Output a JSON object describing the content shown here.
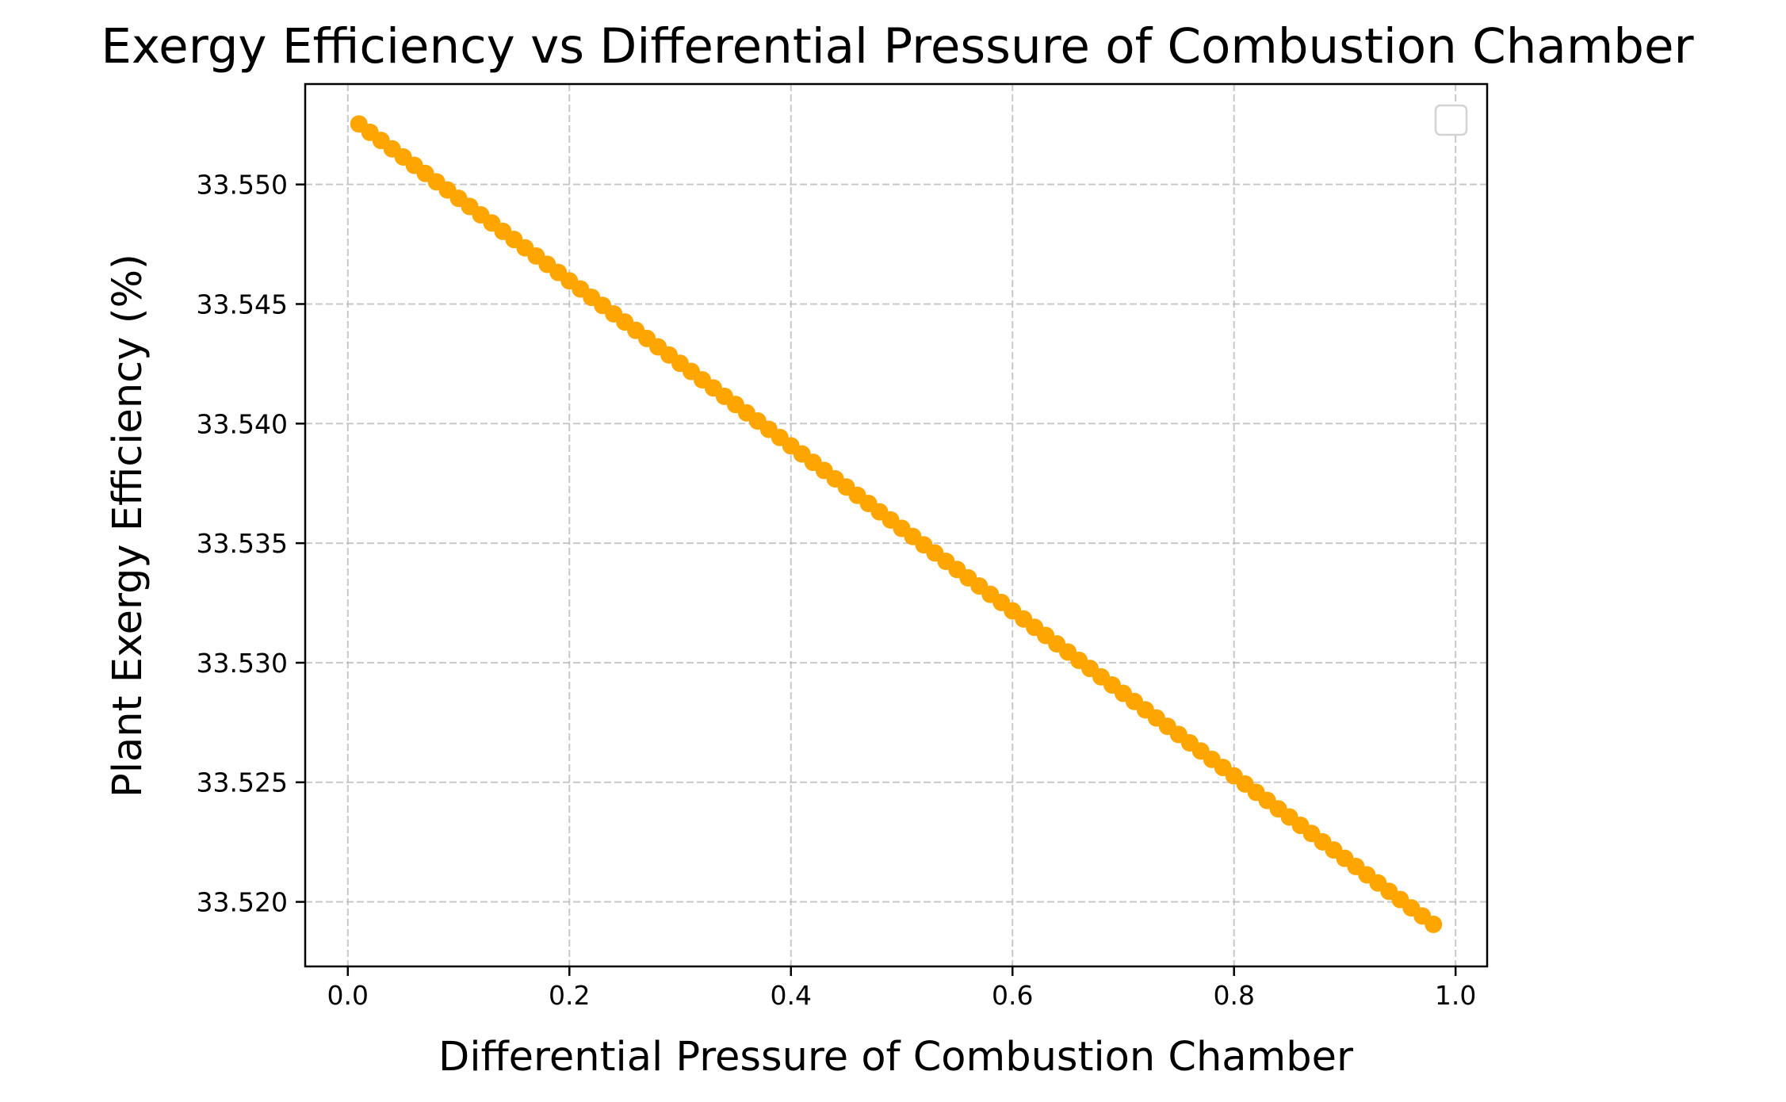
{
  "chart_data": {
    "type": "line",
    "title": "Exergy Efficiency vs Differential Pressure of Combustion Chamber",
    "xlabel": "Differential Pressure of Combustion Chamber",
    "ylabel": "Plant Exergy Efficiency (%)",
    "xlim": [
      -0.0385,
      1.0285
    ],
    "ylim": [
      33.5173,
      33.5542
    ],
    "x_ticks": [
      0.0,
      0.2,
      0.4,
      0.6,
      0.8,
      1.0
    ],
    "x_tick_labels": [
      "0.0",
      "0.2",
      "0.4",
      "0.6",
      "0.8",
      "1.0"
    ],
    "y_ticks": [
      33.52,
      33.525,
      33.53,
      33.535,
      33.54,
      33.545,
      33.55
    ],
    "y_tick_labels": [
      "33.520",
      "33.525",
      "33.530",
      "33.535",
      "33.540",
      "33.545",
      "33.550"
    ],
    "grid": true,
    "legend_position": "upper-right",
    "legend_entries": [],
    "series": [
      {
        "color": "#ffa500",
        "marker": "circle",
        "x": [
          0.01,
          0.02,
          0.03,
          0.04,
          0.05,
          0.06,
          0.07,
          0.08,
          0.09,
          0.1,
          0.11,
          0.12,
          0.13,
          0.14,
          0.15,
          0.16,
          0.17,
          0.18,
          0.19,
          0.2,
          0.21,
          0.22,
          0.23,
          0.24,
          0.25,
          0.26,
          0.27,
          0.28,
          0.29,
          0.3,
          0.31,
          0.32,
          0.33,
          0.34,
          0.35,
          0.36,
          0.37,
          0.38,
          0.39,
          0.4,
          0.41,
          0.42,
          0.43,
          0.44,
          0.45,
          0.46,
          0.47,
          0.48,
          0.49,
          0.5,
          0.51,
          0.52,
          0.53,
          0.54,
          0.55,
          0.56,
          0.57,
          0.58,
          0.59,
          0.6,
          0.61,
          0.62,
          0.63,
          0.64,
          0.65,
          0.66,
          0.67,
          0.68,
          0.69,
          0.7,
          0.71,
          0.72,
          0.73,
          0.74,
          0.75,
          0.76,
          0.77,
          0.78,
          0.79,
          0.8,
          0.81,
          0.82,
          0.83,
          0.84,
          0.85,
          0.86,
          0.87,
          0.88,
          0.89,
          0.9,
          0.91,
          0.92,
          0.93,
          0.94,
          0.95,
          0.96,
          0.97,
          0.98
        ],
        "y": [
          33.55253,
          33.55218,
          33.55184,
          33.55149,
          33.55115,
          33.5508,
          33.55046,
          33.55011,
          33.54977,
          33.54942,
          33.54908,
          33.54873,
          33.54839,
          33.54804,
          33.5477,
          33.54735,
          33.54701,
          33.54666,
          33.54632,
          33.54597,
          33.54563,
          33.54528,
          33.54494,
          33.54459,
          33.54425,
          33.5439,
          33.54356,
          33.54321,
          33.54287,
          33.54252,
          33.54218,
          33.54183,
          33.54149,
          33.54114,
          33.5408,
          33.54045,
          33.54011,
          33.53976,
          33.53942,
          33.53907,
          33.53873,
          33.53838,
          33.53804,
          33.53769,
          33.53735,
          33.537,
          33.53666,
          33.53631,
          33.53597,
          33.53562,
          33.53528,
          33.53493,
          33.53459,
          33.53424,
          33.5339,
          33.53355,
          33.53321,
          33.53286,
          33.53252,
          33.53217,
          33.53183,
          33.53148,
          33.53114,
          33.53079,
          33.53045,
          33.5301,
          33.52976,
          33.52941,
          33.52907,
          33.52872,
          33.52838,
          33.52803,
          33.52769,
          33.52734,
          33.527,
          33.52665,
          33.52631,
          33.52596,
          33.52562,
          33.52527,
          33.52493,
          33.52458,
          33.52424,
          33.52389,
          33.52355,
          33.5232,
          33.52286,
          33.52251,
          33.52217,
          33.52182,
          33.52148,
          33.52113,
          33.52079,
          33.52044,
          33.5201,
          33.51975,
          33.51941,
          33.51906
        ]
      }
    ]
  }
}
